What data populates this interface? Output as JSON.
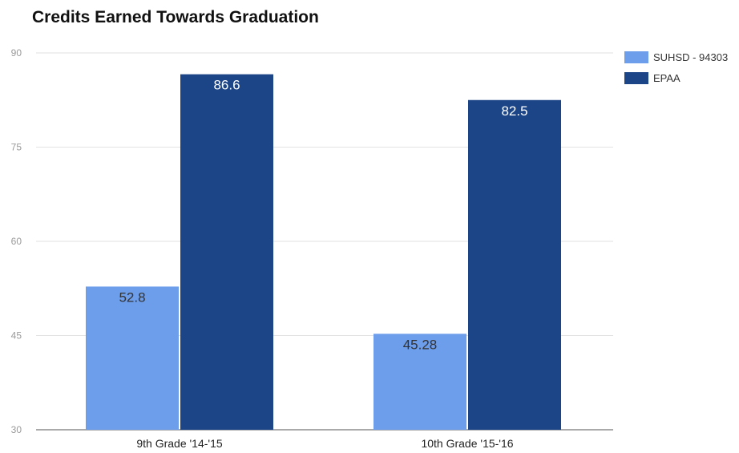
{
  "chart_data": {
    "type": "bar",
    "title": "Credits Earned Towards Graduation",
    "categories": [
      "9th Grade '14-'15",
      "10th Grade '15-'16"
    ],
    "series": [
      {
        "name": "SUHSD - 94303",
        "values": [
          52.8,
          45.28
        ],
        "labels": [
          "52.8",
          "45.28"
        ],
        "color": "#6d9eeb",
        "label_color": "#333333"
      },
      {
        "name": "EPAA",
        "values": [
          86.6,
          82.5
        ],
        "labels": [
          "86.6",
          "82.5"
        ],
        "color": "#1c4587",
        "label_color": "#ffffff"
      }
    ],
    "y_ticks": [
      "30",
      "45",
      "60",
      "75",
      "90"
    ],
    "ylim": [
      30,
      90
    ],
    "grid": true,
    "legend_position": "right"
  }
}
